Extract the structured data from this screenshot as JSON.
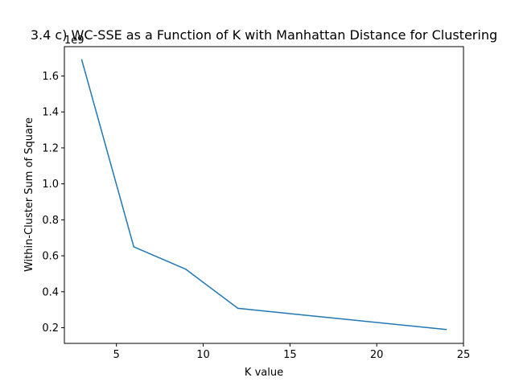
{
  "chart_data": {
    "type": "line",
    "title": "3.4 c) WC-SSE as a Function of K with Manhattan Distance for Clustering",
    "xlabel": "K value",
    "ylabel": "Within-Cluster Sum of Square",
    "y_offset_label": "1e9",
    "xlim": [
      2,
      25
    ],
    "ylim": [
      113000000.0,
      1763000000.0
    ],
    "x_ticks": [
      5,
      10,
      15,
      20,
      25
    ],
    "y_ticks": [
      200000000.0,
      400000000.0,
      600000000.0,
      800000000.0,
      1000000000.0,
      1200000000.0,
      1400000000.0,
      1600000000.0
    ],
    "y_tick_labels": [
      "0.2",
      "0.4",
      "0.6",
      "0.8",
      "1.0",
      "1.2",
      "1.4",
      "1.6"
    ],
    "grid": false,
    "line_color": "#1f77b4",
    "series": [
      {
        "x": [
          3,
          6,
          9,
          12,
          24
        ],
        "values": [
          1690000000.0,
          650000000.0,
          525000000.0,
          308000000.0,
          190000000.0
        ]
      }
    ]
  }
}
